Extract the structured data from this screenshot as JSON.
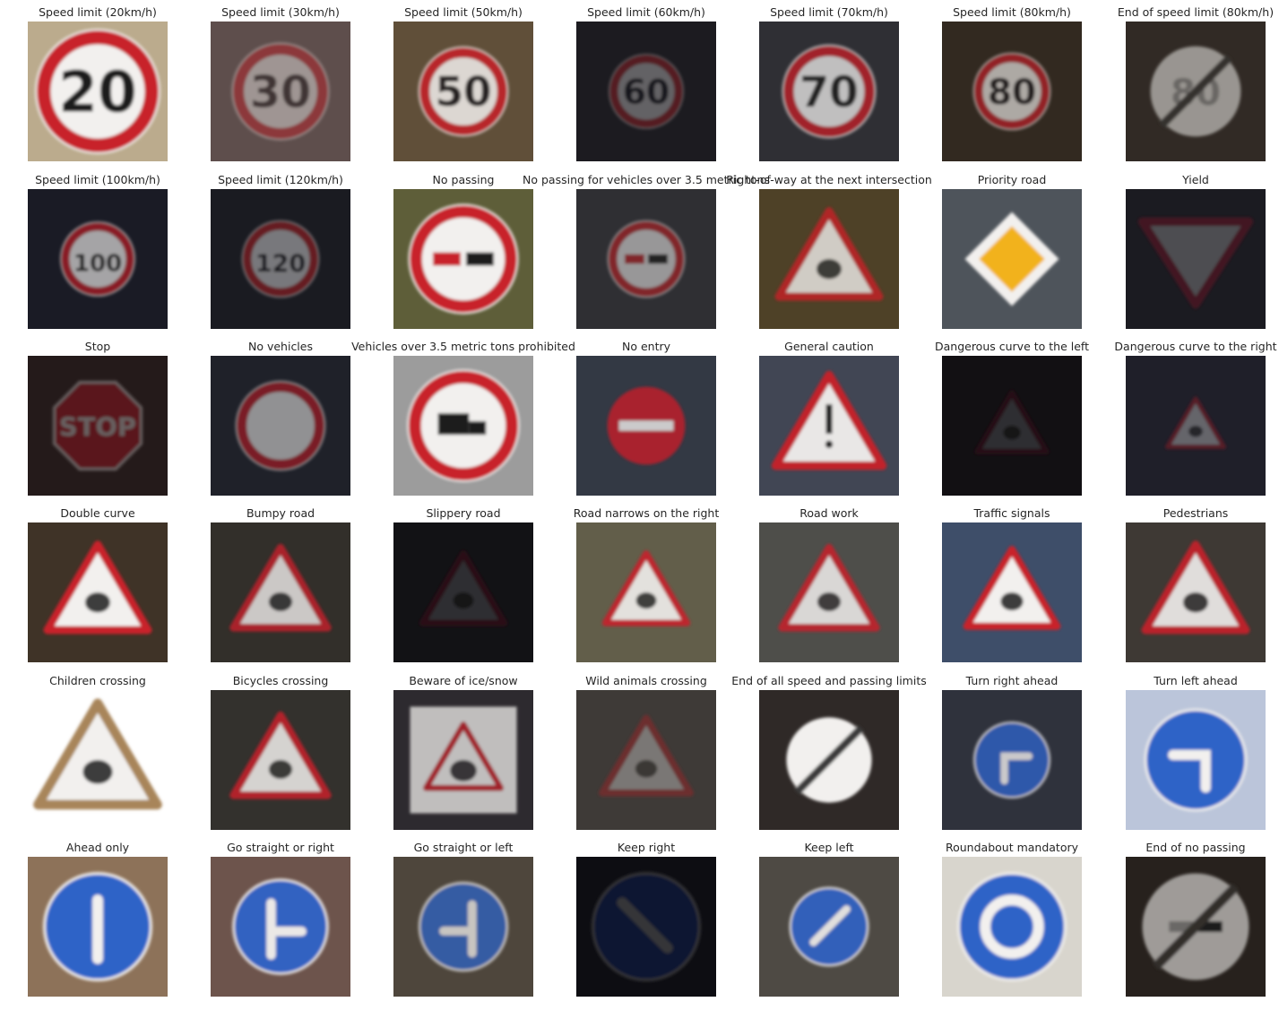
{
  "figure": {
    "tiles": [
      {
        "title": "Speed limit (20km/h)",
        "sign": "speed",
        "text": "20",
        "bg": "#b9a98a",
        "scale": 1.0,
        "dim": 1.0
      },
      {
        "title": "Speed limit (30km/h)",
        "sign": "speed",
        "text": "30",
        "bg": "#5b4a48",
        "scale": 0.78,
        "dim": 0.45
      },
      {
        "title": "Speed limit (50km/h)",
        "sign": "speed",
        "text": "50",
        "bg": "#5c4b35",
        "scale": 0.72,
        "dim": 0.85
      },
      {
        "title": "Speed limit (60km/h)",
        "sign": "speed",
        "text": "60",
        "bg": "#17161b",
        "scale": 0.6,
        "dim": 0.35
      },
      {
        "title": "Speed limit (70km/h)",
        "sign": "speed",
        "text": "70",
        "bg": "#2b2b30",
        "scale": 0.75,
        "dim": 0.75
      },
      {
        "title": "Speed limit (80km/h)",
        "sign": "speed",
        "text": "80",
        "bg": "#2d241b",
        "scale": 0.62,
        "dim": 0.65
      },
      {
        "title": "End of speed limit (80km/h)",
        "sign": "end-speed",
        "text": "80",
        "bg": "#2c2620",
        "scale": 0.72,
        "dim": 0.55
      },
      {
        "title": "Speed limit (100km/h)",
        "sign": "speed",
        "text": "100",
        "bg": "#151621",
        "scale": 0.6,
        "dim": 0.65
      },
      {
        "title": "Speed limit (120km/h)",
        "sign": "speed",
        "text": "120",
        "bg": "#15161c",
        "scale": 0.62,
        "dim": 0.45
      },
      {
        "title": "No passing",
        "sign": "no-passing",
        "text": "",
        "bg": "#5a5a35",
        "scale": 0.88,
        "dim": 1.0
      },
      {
        "title": "No passing for vehicles over 3.5 metric tons",
        "sign": "no-passing",
        "text": "",
        "bg": "#2a2a2e",
        "scale": 0.62,
        "dim": 0.55
      },
      {
        "title": "Right-of-way at the next intersection",
        "sign": "triangle",
        "text": "",
        "bg": "#4a3c22",
        "scale": 0.8,
        "dim": 0.8
      },
      {
        "title": "Priority road",
        "sign": "priority",
        "text": "",
        "bg": "#4a5058",
        "scale": 0.75,
        "dim": 1.0
      },
      {
        "title": "Yield",
        "sign": "yield",
        "text": "",
        "bg": "#16161c",
        "scale": 0.85,
        "dim": 0.25
      },
      {
        "title": "Stop",
        "sign": "stop",
        "text": "STOP",
        "bg": "#1e1414",
        "scale": 0.75,
        "dim": 0.35
      },
      {
        "title": "No vehicles",
        "sign": "no-vehicles",
        "text": "",
        "bg": "#1a1c24",
        "scale": 0.72,
        "dim": 0.55
      },
      {
        "title": "Vehicles over 3.5 metric tons prohibited",
        "sign": "truck",
        "text": "",
        "bg": "#9a9a9a",
        "scale": 0.9,
        "dim": 1.0
      },
      {
        "title": "No entry",
        "sign": "no-entry",
        "text": "",
        "bg": "#2e3440",
        "scale": 0.62,
        "dim": 0.8
      },
      {
        "title": "General caution",
        "sign": "caution",
        "text": "",
        "bg": "#3d4250",
        "scale": 0.85,
        "dim": 0.95
      },
      {
        "title": "Dangerous curve to the left",
        "sign": "triangle",
        "text": "",
        "bg": "#0c0b0e",
        "scale": 0.55,
        "dim": 0.15
      },
      {
        "title": "Dangerous curve to the right",
        "sign": "triangle",
        "text": "",
        "bg": "#191a24",
        "scale": 0.45,
        "dim": 0.35
      },
      {
        "title": "Double curve",
        "sign": "triangle",
        "text": "",
        "bg": "#3b2e22",
        "scale": 0.8,
        "dim": 1.0
      },
      {
        "title": "Bumpy road",
        "sign": "triangle",
        "text": "",
        "bg": "#2d2a25",
        "scale": 0.75,
        "dim": 0.8
      },
      {
        "title": "Slippery road",
        "sign": "triangle",
        "text": "",
        "bg": "#0d0c10",
        "scale": 0.65,
        "dim": 0.15
      },
      {
        "title": "Road narrows on the right",
        "sign": "triangle",
        "text": "",
        "bg": "#5e5a46",
        "scale": 0.65,
        "dim": 0.9
      },
      {
        "title": "Road work",
        "sign": "triangle",
        "text": "",
        "bg": "#4a4a46",
        "scale": 0.75,
        "dim": 0.85
      },
      {
        "title": "Traffic signals",
        "sign": "triangle",
        "text": "",
        "bg": "#3a4a66",
        "scale": 0.72,
        "dim": 1.0
      },
      {
        "title": "Pedestrians",
        "sign": "triangle",
        "text": "",
        "bg": "#3a3530",
        "scale": 0.8,
        "dim": 0.9
      },
      {
        "title": "Children crossing",
        "sign": "triangle-white",
        "text": "",
        "bg": "#ffffff",
        "scale": 0.95,
        "dim": 1.0
      },
      {
        "title": "Bicycles crossing",
        "sign": "triangle",
        "text": "",
        "bg": "#2e2c28",
        "scale": 0.75,
        "dim": 0.85
      },
      {
        "title": "Beware of ice/snow",
        "sign": "ice",
        "text": "",
        "bg": "#28262a",
        "scale": 0.85,
        "dim": 0.75
      },
      {
        "title": "Wild animals crossing",
        "sign": "triangle",
        "text": "",
        "bg": "#3a3632",
        "scale": 0.7,
        "dim": 0.35
      },
      {
        "title": "End of all speed and passing limits",
        "sign": "end-all",
        "text": "",
        "bg": "#2b2422",
        "scale": 0.68,
        "dim": 1.0
      },
      {
        "title": "Turn right ahead",
        "sign": "blue-arrow",
        "text": "right",
        "bg": "#2a2d38",
        "scale": 0.6,
        "dim": 0.8
      },
      {
        "title": "Turn left ahead",
        "sign": "blue-arrow",
        "text": "left",
        "bg": "#b9c4d9",
        "scale": 0.8,
        "dim": 1.0
      },
      {
        "title": "Ahead only",
        "sign": "blue-arrow",
        "text": "up",
        "bg": "#8a6e55",
        "scale": 0.85,
        "dim": 1.0
      },
      {
        "title": "Go straight or right",
        "sign": "blue-arrow",
        "text": "up-right",
        "bg": "#6a5048",
        "scale": 0.75,
        "dim": 0.95
      },
      {
        "title": "Go straight or left",
        "sign": "blue-arrow",
        "text": "up-left",
        "bg": "#4a4238",
        "scale": 0.7,
        "dim": 0.75
      },
      {
        "title": "Keep right",
        "sign": "blue-arrow",
        "text": "down-right",
        "bg": "#07070c",
        "scale": 0.85,
        "dim": 0.2
      },
      {
        "title": "Keep left",
        "sign": "blue-arrow",
        "text": "down-left",
        "bg": "#4a4640",
        "scale": 0.62,
        "dim": 0.9
      },
      {
        "title": "Roundabout mandatory",
        "sign": "roundabout",
        "text": "",
        "bg": "#d8d4cc",
        "scale": 0.85,
        "dim": 1.0
      },
      {
        "title": "End of no passing",
        "sign": "end-nopass",
        "text": "",
        "bg": "#221c18",
        "scale": 0.85,
        "dim": 0.6
      }
    ]
  }
}
